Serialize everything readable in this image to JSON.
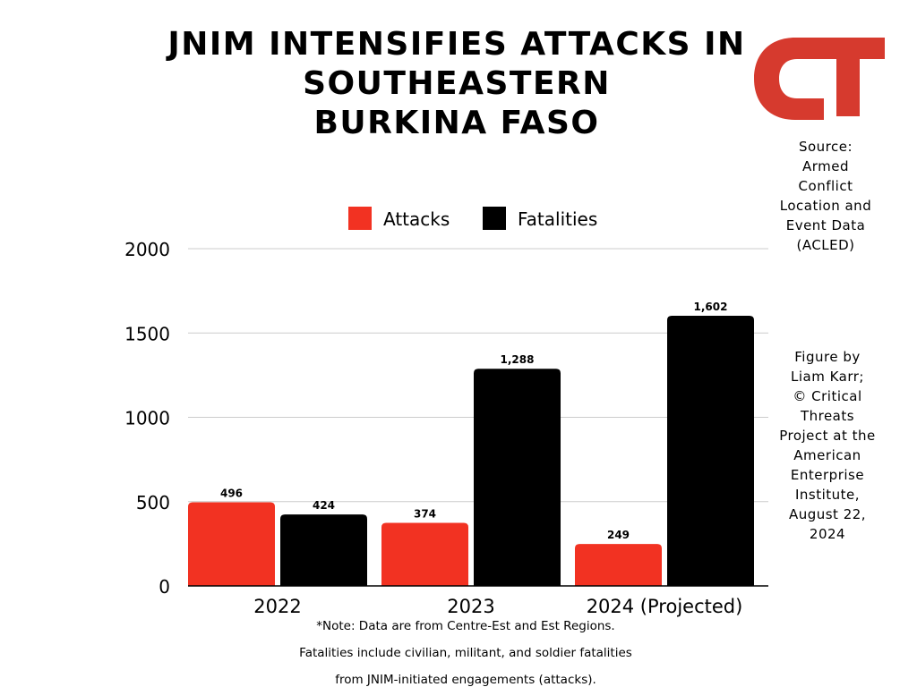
{
  "title_lines": [
    "JNIM INTENSIFIES ATTACKS IN",
    "SOUTHEASTERN",
    "BURKINA FASO"
  ],
  "source_lines": [
    "Source:",
    "Armed",
    "Conflict",
    "Location and",
    "Event Data",
    "(ACLED)"
  ],
  "credit_lines": [
    "Figure by",
    "Liam Karr;",
    "© Critical",
    "Threats",
    "Project at the",
    "American",
    "Enterprise",
    "Institute,",
    "August 22,",
    "2024"
  ],
  "footnote_lines": [
    "*Note: Data are from Centre-Est and Est Regions.",
    "Fatalities include civilian, militant, and soldier fatalities",
    "from JNIM-initiated engagements (attacks)."
  ],
  "logo": {
    "text": "CT",
    "color": "#d63a2e"
  },
  "colors": {
    "attacks": "#f23222",
    "fatalities": "#000000",
    "grid": "#cccccc"
  },
  "chart_data": {
    "type": "bar",
    "categories": [
      "2022",
      "2023",
      "2024 (Projected)"
    ],
    "series": [
      {
        "name": "Attacks",
        "values": [
          496,
          374,
          249
        ],
        "labels": [
          "496",
          "374",
          "249"
        ]
      },
      {
        "name": "Fatalities",
        "values": [
          424,
          1288,
          1602
        ],
        "labels": [
          "424",
          "1,288",
          "1,602"
        ]
      }
    ],
    "ylim": [
      0,
      2000
    ],
    "yticks": [
      0,
      500,
      1000,
      1500,
      2000
    ],
    "grid": true,
    "legend": "top-center"
  }
}
